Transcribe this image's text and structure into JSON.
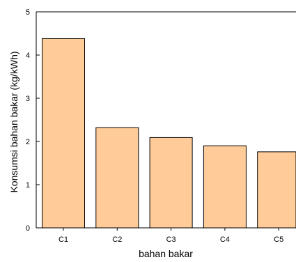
{
  "chart_data": {
    "type": "bar",
    "title": "",
    "xlabel": "bahan bakar",
    "ylabel": "Konsumsi bahan bakar (kg/kWh)",
    "categories": [
      "C1",
      "C2",
      "C3",
      "C4",
      "C5"
    ],
    "values": [
      4.38,
      2.32,
      2.09,
      1.9,
      1.76
    ],
    "ylim": [
      0,
      5
    ],
    "yticks": [
      "0",
      "1",
      "2",
      "3",
      "4",
      "5"
    ],
    "grid": false,
    "legend": "none",
    "bar_color": "#ffcc99",
    "bar_edge_color": "#000000"
  }
}
